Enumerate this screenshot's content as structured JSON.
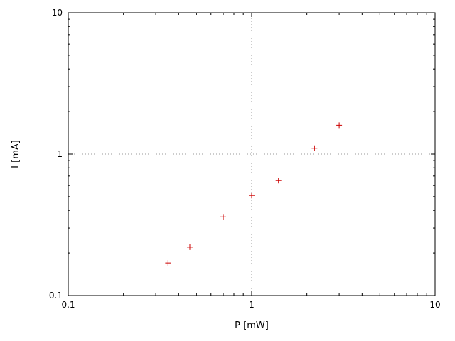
{
  "chart_data": {
    "type": "scatter",
    "title": "",
    "xlabel": "P [mW]",
    "ylabel": "I [mA]",
    "xscale": "log",
    "yscale": "log",
    "xlim": [
      0.1,
      10
    ],
    "ylim": [
      0.1,
      10
    ],
    "x_ticks": [
      0.1,
      1,
      10
    ],
    "y_ticks": [
      0.1,
      1,
      10
    ],
    "x_tick_labels": [
      "0.1",
      "1",
      "10"
    ],
    "y_tick_labels": [
      "0.1",
      "1",
      "10"
    ],
    "minor_ticks": [
      0.2,
      0.3,
      0.4,
      0.5,
      0.6,
      0.7,
      0.8,
      0.9,
      2,
      3,
      4,
      5,
      6,
      7,
      8,
      9
    ],
    "grid": {
      "x_lines": [
        1
      ],
      "y_lines": [
        1
      ],
      "style": "dotted",
      "color": "#9a9a9a"
    },
    "legend": "none",
    "marker": {
      "shape": "plus",
      "color": "#cc0000"
    },
    "border_color": "#000000",
    "points": [
      {
        "x": 0.35,
        "y": 0.17
      },
      {
        "x": 0.46,
        "y": 0.22
      },
      {
        "x": 0.7,
        "y": 0.36
      },
      {
        "x": 1.0,
        "y": 0.51
      },
      {
        "x": 1.4,
        "y": 0.65
      },
      {
        "x": 2.2,
        "y": 1.1
      },
      {
        "x": 3.0,
        "y": 1.6
      }
    ]
  }
}
